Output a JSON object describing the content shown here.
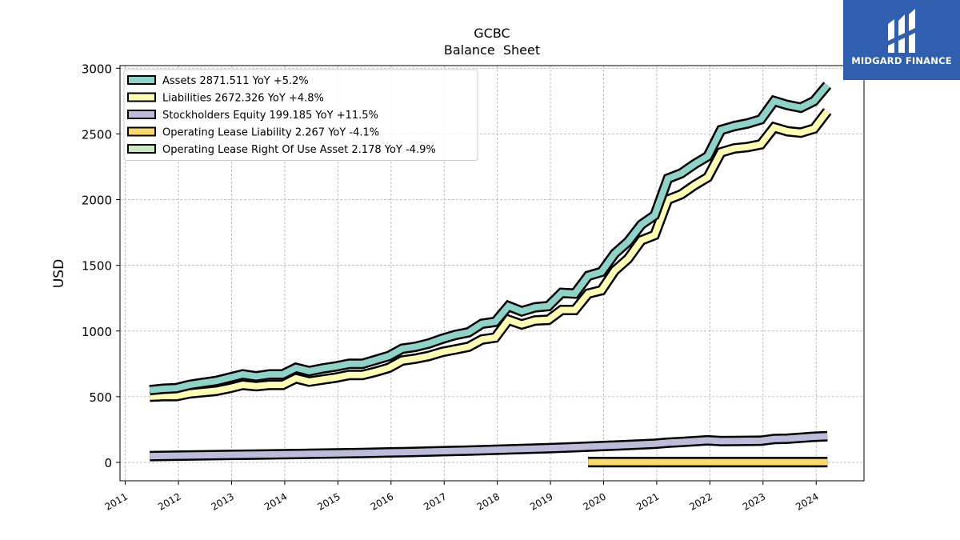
{
  "chart_data": {
    "type": "line",
    "title": "GCBC",
    "subtitle": "Balance  Sheet",
    "ylabel": "USD",
    "xlabel": "",
    "xlim": [
      2010.9,
      2024.9
    ],
    "ylim": [
      -140,
      3020
    ],
    "yticks": [
      0,
      500,
      1000,
      1500,
      2000,
      2500,
      3000
    ],
    "xticks": [
      "2011",
      "2012",
      "2013",
      "2014",
      "2015",
      "2016",
      "2017",
      "2018",
      "2019",
      "2020",
      "2021",
      "2022",
      "2023",
      "2024"
    ],
    "grid": true,
    "legend_position": "top-left",
    "series": [
      {
        "name": "Assets  2871.511 YoY +5.2%",
        "color": "#8dd3c7",
        "x": [
          2011.46,
          2011.71,
          2011.96,
          2012.21,
          2012.46,
          2012.71,
          2012.96,
          2013.21,
          2013.46,
          2013.71,
          2013.96,
          2014.21,
          2014.46,
          2014.71,
          2014.96,
          2015.21,
          2015.46,
          2015.71,
          2015.96,
          2016.21,
          2016.46,
          2016.71,
          2016.96,
          2017.21,
          2017.46,
          2017.71,
          2017.96,
          2018.21,
          2018.46,
          2018.71,
          2018.96,
          2019.21,
          2019.46,
          2019.71,
          2019.96,
          2020.21,
          2020.46,
          2020.71,
          2020.96,
          2021.21,
          2021.46,
          2021.71,
          2021.96,
          2022.21,
          2022.46,
          2022.71,
          2022.96,
          2023.21,
          2023.46,
          2023.71,
          2023.96,
          2024.21
        ],
        "y": [
          550,
          560,
          565,
          590,
          605,
          620,
          645,
          670,
          655,
          670,
          670,
          720,
          695,
          715,
          730,
          750,
          750,
          780,
          810,
          865,
          880,
          905,
          940,
          970,
          990,
          1055,
          1070,
          1190,
          1150,
          1180,
          1190,
          1290,
          1285,
          1420,
          1450,
          1590,
          1680,
          1810,
          1880,
          2160,
          2200,
          2270,
          2330,
          2530,
          2560,
          2580,
          2610,
          2750,
          2720,
          2700,
          2750,
          2871.511
        ]
      },
      {
        "name": "Liabilities  2672.326 YoY +4.8%",
        "color": "#ffffb3",
        "x": [
          2011.46,
          2011.71,
          2011.96,
          2012.21,
          2012.46,
          2012.71,
          2012.96,
          2013.21,
          2013.46,
          2013.71,
          2013.96,
          2014.21,
          2014.46,
          2014.71,
          2014.96,
          2015.21,
          2015.46,
          2015.71,
          2015.96,
          2016.21,
          2016.46,
          2016.71,
          2016.96,
          2017.21,
          2017.46,
          2017.71,
          2017.96,
          2018.21,
          2018.46,
          2018.71,
          2018.96,
          2019.21,
          2019.46,
          2019.71,
          2019.96,
          2020.21,
          2020.46,
          2020.71,
          2020.96,
          2021.21,
          2021.46,
          2021.71,
          2021.96,
          2022.21,
          2022.46,
          2022.71,
          2022.96,
          2023.21,
          2023.46,
          2023.71,
          2023.96,
          2024.21
        ],
        "y": [
          500,
          505,
          505,
          525,
          535,
          545,
          565,
          590,
          580,
          590,
          590,
          640,
          615,
          630,
          645,
          665,
          665,
          690,
          720,
          775,
          790,
          810,
          840,
          860,
          880,
          935,
          950,
          1085,
          1050,
          1080,
          1085,
          1160,
          1160,
          1285,
          1310,
          1460,
          1550,
          1690,
          1730,
          2000,
          2040,
          2110,
          2170,
          2360,
          2390,
          2400,
          2420,
          2550,
          2520,
          2510,
          2540,
          2672.326
        ]
      },
      {
        "name": "Stockholders Equity  199.185 YoY +11.5%",
        "color": "#bebada",
        "x": [
          2011.46,
          2011.96,
          2012.46,
          2012.96,
          2013.46,
          2013.96,
          2014.46,
          2014.96,
          2015.46,
          2015.96,
          2016.46,
          2016.96,
          2017.46,
          2017.96,
          2018.46,
          2018.96,
          2019.46,
          2019.96,
          2020.46,
          2020.96,
          2021.21,
          2021.46,
          2021.96,
          2022.21,
          2022.46,
          2022.96,
          2023.21,
          2023.46,
          2023.96,
          2024.21
        ],
        "y": [
          48,
          51,
          54,
          57,
          60,
          62,
          65,
          68,
          72,
          76,
          80,
          85,
          90,
          96,
          102,
          108,
          116,
          124,
          132,
          142,
          150,
          155,
          168,
          162,
          163,
          165,
          178,
          180,
          195,
          199.185
        ]
      },
      {
        "name": "Operating Lease Liability  2.267 YoY -4.1%",
        "color": "#fdd96a",
        "x": [
          2019.71,
          2024.21
        ],
        "y": [
          2.6,
          2.267
        ]
      },
      {
        "name": "Operating Lease Right Of Use Asset  2.178 YoY -4.9%",
        "color": "#ccebc5",
        "x": [
          2019.71,
          2024.21
        ],
        "y": [
          2.5,
          2.178
        ]
      }
    ]
  },
  "logo": {
    "text": "MIDGARD FINANCE"
  }
}
